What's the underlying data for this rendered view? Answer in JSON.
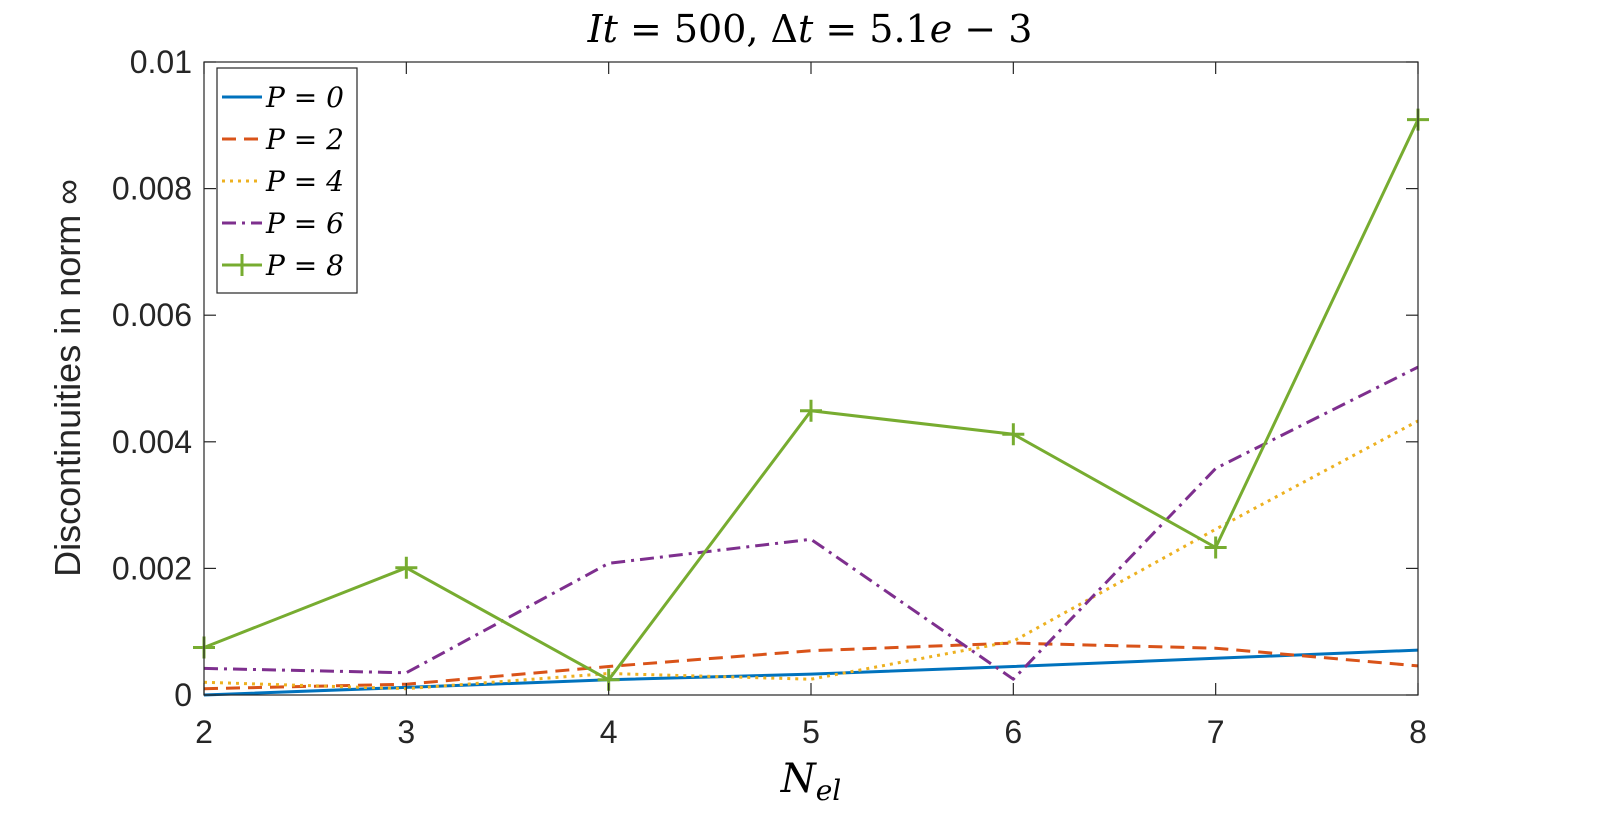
{
  "chart_data": {
    "type": "line",
    "title": "It = 500, Δt = 5.1e − 3",
    "title_parts": {
      "a": "It",
      "b": " = 500, ",
      "c": "Δ",
      "d": "t",
      "e": " = 5.1",
      "f": "e",
      "g": " − 3"
    },
    "xlabel": "N",
    "xlabel_sub": "el",
    "ylabel": "Discontinuities in norm ∞",
    "xlim": [
      2,
      8
    ],
    "ylim": [
      0,
      0.01
    ],
    "grid": false,
    "legend_placement": "top-left",
    "x": [
      2,
      3,
      4,
      5,
      6,
      7,
      8
    ],
    "x_ticks": [
      "2",
      "3",
      "4",
      "5",
      "6",
      "7",
      "8"
    ],
    "y_ticks": [
      {
        "v": 0,
        "label": "0"
      },
      {
        "v": 0.002,
        "label": "0.002"
      },
      {
        "v": 0.004,
        "label": "0.004"
      },
      {
        "v": 0.006,
        "label": "0.006"
      },
      {
        "v": 0.008,
        "label": "0.008"
      },
      {
        "v": 0.01,
        "label": "0.01"
      }
    ],
    "series": [
      {
        "name": "P = 0",
        "color": "#0072BD",
        "dash": "solid",
        "marker": "none",
        "values": [
          0.0,
          0.00012,
          0.00024,
          0.00033,
          0.00045,
          0.00058,
          0.00071
        ]
      },
      {
        "name": "P = 2",
        "color": "#D95319",
        "dash": "dashed",
        "marker": "none",
        "values": [
          0.0001,
          0.00017,
          0.00045,
          0.0007,
          0.00082,
          0.00074,
          0.00046
        ]
      },
      {
        "name": "P = 4",
        "color": "#EDB120",
        "dash": "dotted",
        "marker": "none",
        "values": [
          0.0002,
          0.0001,
          0.00034,
          0.00025,
          0.00085,
          0.00262,
          0.00433
        ]
      },
      {
        "name": "P = 6",
        "color": "#7E2F8E",
        "dash": "dashdot",
        "marker": "none",
        "values": [
          0.00042,
          0.00035,
          0.00208,
          0.00246,
          0.00025,
          0.00358,
          0.00518
        ]
      },
      {
        "name": "P = 8",
        "color": "#77AC30",
        "dash": "solid",
        "marker": "plus",
        "values": [
          0.00075,
          0.00201,
          0.00024,
          0.00449,
          0.00412,
          0.00233,
          0.00909
        ]
      }
    ]
  }
}
